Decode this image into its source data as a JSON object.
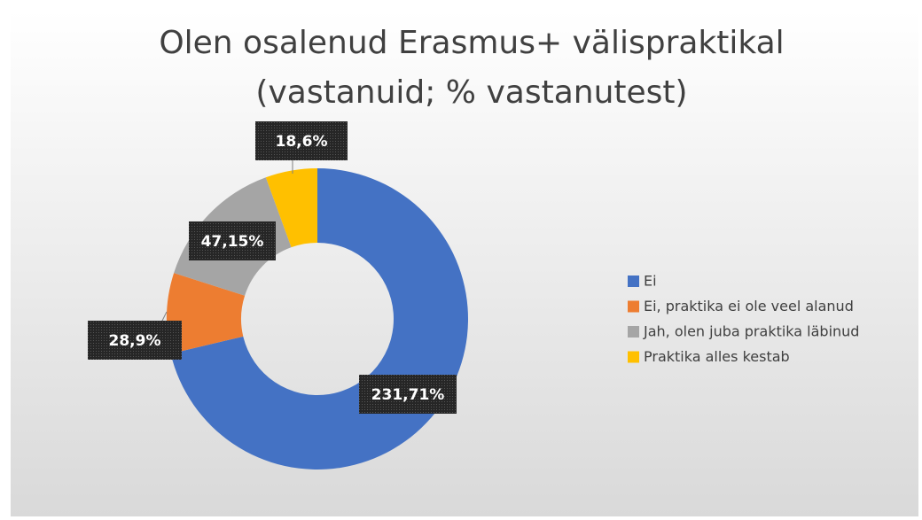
{
  "chart_data": {
    "type": "donut",
    "title": "Olen osalenud Erasmus+ välispraktikal",
    "subtitle": "(vastanuid; % vastanutest)",
    "categories": [
      "Ei",
      "Ei, praktika ei ole veel alanud",
      "Jah, olen juba praktika läbinud",
      "Praktika alles kestab"
    ],
    "values": [
      231,
      28,
      47,
      18
    ],
    "value_labels": [
      "231,71%",
      "28,9%",
      "47,15%",
      "18,6%"
    ],
    "colors": [
      "#4472c4",
      "#ed7d31",
      "#a5a5a5",
      "#ffc000"
    ],
    "legend": "right"
  }
}
